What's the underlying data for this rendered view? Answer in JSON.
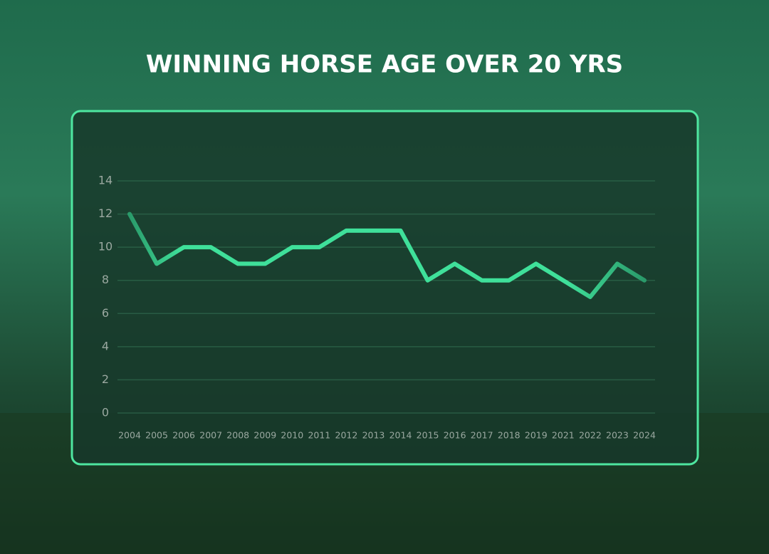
{
  "chart_data": {
    "type": "line",
    "title": "WINNING HORSE AGE OVER 20 YRS",
    "categories": [
      "2004",
      "2005",
      "2006",
      "2007",
      "2008",
      "2009",
      "2010",
      "2011",
      "2012",
      "2013",
      "2014",
      "2015",
      "2016",
      "2017",
      "2018",
      "2019",
      "2021",
      "2022",
      "2023",
      "2024"
    ],
    "series": [
      {
        "name": "Winning horse age",
        "color": "#3fe09a",
        "values": [
          12,
          9,
          10,
          10,
          9,
          9,
          10,
          10,
          11,
          11,
          11,
          8,
          9,
          8,
          8,
          9,
          8,
          7,
          9,
          8
        ]
      }
    ],
    "ylim": [
      0,
      14
    ],
    "yticks": [
      0,
      2,
      4,
      6,
      8,
      10,
      12,
      14
    ],
    "grid": true
  }
}
